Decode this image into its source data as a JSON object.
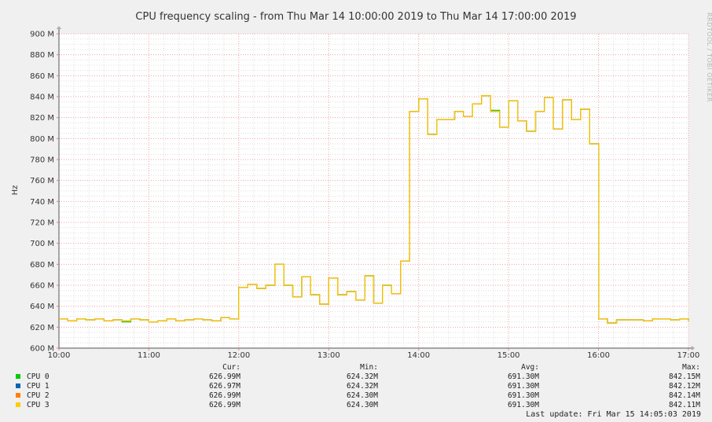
{
  "chart_data": {
    "type": "line",
    "title": "CPU frequency scaling - from Thu Mar 14 10:00:00 2019 to Thu Mar 14 17:00:00 2019",
    "ylabel": "Hz",
    "xlabel": "",
    "xlim": [
      10,
      17
    ],
    "ylim": [
      600,
      900
    ],
    "x_ticks": [
      "10:00",
      "11:00",
      "12:00",
      "13:00",
      "14:00",
      "15:00",
      "16:00",
      "17:00"
    ],
    "y_ticks": [
      "600 M",
      "620 M",
      "640 M",
      "660 M",
      "680 M",
      "700 M",
      "720 M",
      "740 M",
      "760 M",
      "780 M",
      "800 M",
      "820 M",
      "840 M",
      "860 M",
      "880 M",
      "900 M"
    ],
    "grid": true,
    "step": true,
    "x": [
      10.0,
      10.1,
      10.2,
      10.3,
      10.4,
      10.5,
      10.6,
      10.7,
      10.8,
      10.9,
      11.0,
      11.1,
      11.2,
      11.3,
      11.4,
      11.5,
      11.6,
      11.7,
      11.8,
      11.9,
      12.0,
      12.1,
      12.2,
      12.3,
      12.4,
      12.5,
      12.6,
      12.7,
      12.8,
      12.9,
      13.0,
      13.1,
      13.2,
      13.3,
      13.4,
      13.5,
      13.6,
      13.7,
      13.8,
      13.9,
      14.0,
      14.1,
      14.2,
      14.3,
      14.4,
      14.5,
      14.6,
      14.7,
      14.8,
      14.9,
      15.0,
      15.1,
      15.2,
      15.3,
      15.4,
      15.5,
      15.6,
      15.7,
      15.8,
      15.9,
      16.0,
      16.1,
      16.2,
      16.3,
      16.4,
      16.5,
      16.6,
      16.7,
      16.8,
      16.9,
      17.0
    ],
    "series": [
      {
        "name": "CPU 0",
        "color": "#00cc00",
        "values": [
          628,
          626,
          628,
          627,
          628,
          626,
          627,
          625,
          628,
          627,
          625,
          626,
          628,
          626,
          627,
          628,
          627,
          626,
          629,
          628,
          658,
          661,
          657,
          660,
          680,
          660,
          649,
          668,
          651,
          642,
          667,
          651,
          654,
          646,
          669,
          643,
          660,
          652,
          683,
          826,
          838,
          804,
          818,
          818,
          826,
          821,
          833,
          841,
          827,
          811,
          836,
          817,
          807,
          826,
          839,
          809,
          837,
          818,
          828,
          795,
          628,
          624,
          627,
          627,
          627,
          626,
          628,
          628,
          627,
          628,
          626
        ]
      },
      {
        "name": "CPU 1",
        "color": "#0066b3",
        "values": [
          628,
          626,
          628,
          627,
          628,
          626,
          627,
          626,
          628,
          627,
          625,
          626,
          628,
          626,
          627,
          628,
          627,
          626,
          629,
          628,
          658,
          661,
          657,
          660,
          680,
          660,
          649,
          668,
          651,
          642,
          667,
          651,
          654,
          646,
          669,
          643,
          660,
          652,
          683,
          826,
          838,
          804,
          818,
          818,
          826,
          821,
          833,
          841,
          826,
          811,
          836,
          817,
          807,
          826,
          839,
          809,
          837,
          818,
          828,
          795,
          628,
          624,
          627,
          627,
          627,
          626,
          628,
          628,
          627,
          628,
          626
        ]
      },
      {
        "name": "CPU 2",
        "color": "#ff8000",
        "values": [
          628,
          626,
          628,
          627,
          628,
          626,
          627,
          626,
          628,
          627,
          625,
          626,
          628,
          626,
          627,
          628,
          627,
          626,
          629,
          628,
          658,
          661,
          657,
          660,
          680,
          660,
          649,
          668,
          651,
          642,
          667,
          651,
          654,
          646,
          669,
          643,
          660,
          652,
          683,
          826,
          838,
          804,
          818,
          818,
          826,
          821,
          833,
          841,
          826,
          811,
          836,
          817,
          807,
          826,
          839,
          809,
          837,
          818,
          828,
          795,
          628,
          624,
          627,
          627,
          627,
          626,
          628,
          628,
          627,
          628,
          626
        ]
      },
      {
        "name": "CPU 3",
        "color": "#ffcc00",
        "values": [
          628,
          626,
          628,
          627,
          628,
          626,
          627,
          626,
          628,
          627,
          625,
          626,
          628,
          626,
          627,
          628,
          627,
          626,
          629,
          628,
          658,
          661,
          657,
          660,
          680,
          660,
          649,
          668,
          651,
          642,
          667,
          651,
          654,
          646,
          669,
          643,
          660,
          652,
          683,
          826,
          838,
          804,
          818,
          818,
          826,
          821,
          833,
          841,
          826,
          811,
          836,
          817,
          807,
          826,
          839,
          809,
          837,
          818,
          828,
          795,
          628,
          624,
          627,
          627,
          627,
          626,
          628,
          628,
          627,
          628,
          626
        ]
      }
    ]
  },
  "legend": {
    "headers": {
      "cur": "Cur:",
      "min": "Min:",
      "avg": "Avg:",
      "max": "Max:"
    },
    "rows": [
      {
        "name": "CPU 0",
        "color": "#00cc00",
        "cur": "626.99M",
        "min": "624.32M",
        "avg": "691.30M",
        "max": "842.15M"
      },
      {
        "name": "CPU 1",
        "color": "#0066b3",
        "cur": "626.97M",
        "min": "624.32M",
        "avg": "691.30M",
        "max": "842.12M"
      },
      {
        "name": "CPU 2",
        "color": "#ff8000",
        "cur": "626.99M",
        "min": "624.30M",
        "avg": "691.30M",
        "max": "842.14M"
      },
      {
        "name": "CPU 3",
        "color": "#ffcc00",
        "cur": "626.99M",
        "min": "624.30M",
        "avg": "691.30M",
        "max": "842.11M"
      }
    ]
  },
  "last_update": "Last update: Fri Mar 15 14:05:03 2019",
  "watermark": "RRDTOOL / TOBI OETIKER"
}
